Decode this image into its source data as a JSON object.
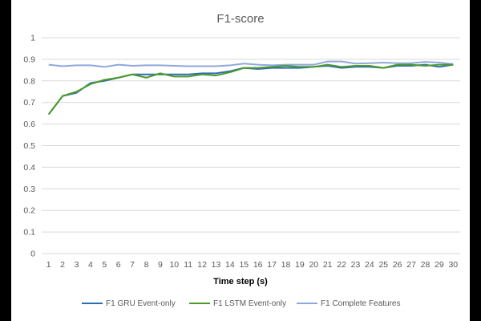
{
  "chart_data": {
    "type": "line",
    "title": "F1-score",
    "xlabel": "Time step (s)",
    "ylabel": "",
    "ylim": [
      0,
      1
    ],
    "y_ticks": [
      "0",
      "0.1",
      "0.2",
      "0.3",
      "0.4",
      "0.5",
      "0.6",
      "0.7",
      "0.8",
      "0.9",
      "1"
    ],
    "grid": true,
    "legend_position": "bottom",
    "categories": [
      "1",
      "2",
      "3",
      "4",
      "5",
      "6",
      "7",
      "8",
      "9",
      "10",
      "11",
      "12",
      "13",
      "14",
      "15",
      "16",
      "17",
      "18",
      "19",
      "20",
      "21",
      "22",
      "23",
      "24",
      "25",
      "26",
      "27",
      "28",
      "29",
      "30"
    ],
    "series": [
      {
        "name": "F1 GRU Event-only",
        "color": "#2E6DB4",
        "values": [
          0.645,
          0.73,
          0.745,
          0.79,
          0.8,
          0.815,
          0.83,
          0.83,
          0.83,
          0.83,
          0.83,
          0.835,
          0.835,
          0.845,
          0.86,
          0.855,
          0.86,
          0.86,
          0.86,
          0.865,
          0.87,
          0.86,
          0.865,
          0.865,
          0.86,
          0.87,
          0.87,
          0.875,
          0.865,
          0.875
        ]
      },
      {
        "name": "F1 LSTM  Event-only",
        "color": "#4C9A2A",
        "values": [
          0.645,
          0.73,
          0.75,
          0.785,
          0.805,
          0.815,
          0.83,
          0.815,
          0.835,
          0.82,
          0.82,
          0.83,
          0.825,
          0.84,
          0.86,
          0.86,
          0.865,
          0.87,
          0.865,
          0.865,
          0.875,
          0.865,
          0.87,
          0.87,
          0.86,
          0.875,
          0.875,
          0.87,
          0.875,
          0.875
        ]
      },
      {
        "name": "F1 Complete Features",
        "color": "#8FA8DC",
        "values": [
          0.875,
          0.868,
          0.872,
          0.872,
          0.865,
          0.875,
          0.87,
          0.872,
          0.872,
          0.87,
          0.868,
          0.868,
          0.868,
          0.872,
          0.88,
          0.875,
          0.872,
          0.875,
          0.875,
          0.875,
          0.89,
          0.89,
          0.88,
          0.882,
          0.885,
          0.882,
          0.882,
          0.888,
          0.885,
          0.878
        ]
      }
    ]
  }
}
